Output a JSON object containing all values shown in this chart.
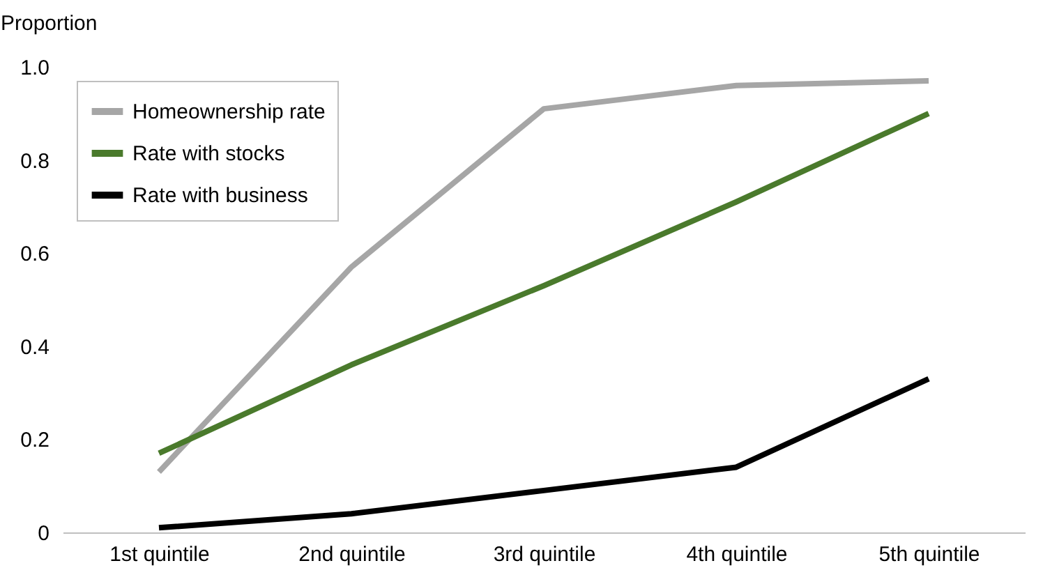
{
  "chart_data": {
    "type": "line",
    "ylabel": "Proportion",
    "categories": [
      "1st quintile",
      "2nd quintile",
      "3rd quintile",
      "4th quintile",
      "5th quintile"
    ],
    "series": [
      {
        "name": "Homeownership rate",
        "color": "#a6a6a6",
        "values": [
          0.13,
          0.57,
          0.91,
          0.96,
          0.97
        ]
      },
      {
        "name": "Rate with stocks",
        "color": "#4a7a2c",
        "values": [
          0.17,
          0.36,
          0.53,
          0.71,
          0.9
        ]
      },
      {
        "name": "Rate with business",
        "color": "#000000",
        "values": [
          0.01,
          0.04,
          0.09,
          0.14,
          0.33
        ]
      }
    ],
    "ylim": [
      0,
      1
    ],
    "yticks": [
      {
        "value": 0,
        "label": "0"
      },
      0.2,
      0.4,
      0.6,
      0.8,
      {
        "value": 1,
        "label": "1.0"
      }
    ],
    "legend": "top left",
    "marker": "none",
    "line_style": "solid"
  }
}
